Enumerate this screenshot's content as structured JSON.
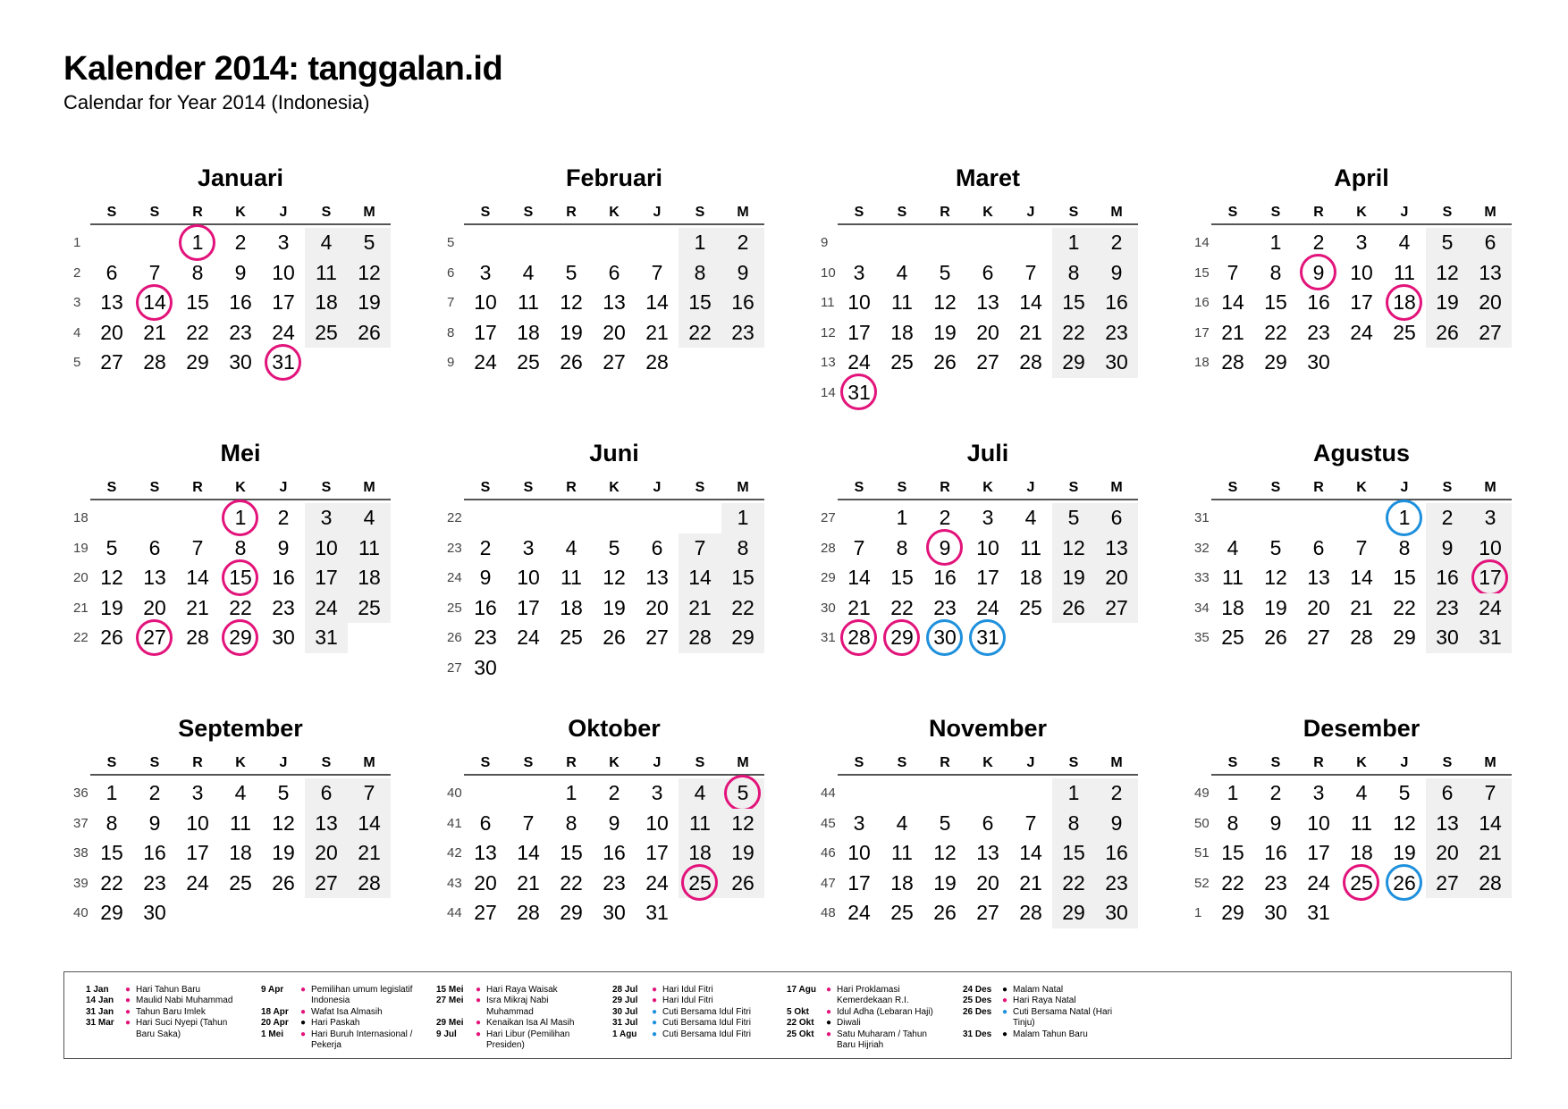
{
  "title": "Kalender 2014: tanggalan.id",
  "subtitle": "Calendar for Year 2014 (Indonesia)",
  "colors": {
    "holiday": "#e2137a",
    "cuti_bersama": "#1e90dc",
    "other": "#000000",
    "weekend_shade": "#f0f0f0"
  },
  "weekday_headers": [
    "S",
    "S",
    "R",
    "K",
    "J",
    "S",
    "M"
  ],
  "months": [
    {
      "name": "Januari",
      "rows": [
        {
          "w": "1",
          "d": [
            null,
            null,
            1,
            2,
            3,
            4,
            5
          ]
        },
        {
          "w": "2",
          "d": [
            6,
            7,
            8,
            9,
            10,
            11,
            12
          ]
        },
        {
          "w": "3",
          "d": [
            13,
            14,
            15,
            16,
            17,
            18,
            19
          ]
        },
        {
          "w": "4",
          "d": [
            20,
            21,
            22,
            23,
            24,
            25,
            26
          ]
        },
        {
          "w": "5",
          "d": [
            27,
            28,
            29,
            30,
            31,
            null,
            null
          ]
        }
      ],
      "marks": {
        "1": "holiday",
        "14": "holiday",
        "31": "holiday"
      }
    },
    {
      "name": "Februari",
      "rows": [
        {
          "w": "5",
          "d": [
            null,
            null,
            null,
            null,
            null,
            1,
            2
          ]
        },
        {
          "w": "6",
          "d": [
            3,
            4,
            5,
            6,
            7,
            8,
            9
          ]
        },
        {
          "w": "7",
          "d": [
            10,
            11,
            12,
            13,
            14,
            15,
            16
          ]
        },
        {
          "w": "8",
          "d": [
            17,
            18,
            19,
            20,
            21,
            22,
            23
          ]
        },
        {
          "w": "9",
          "d": [
            24,
            25,
            26,
            27,
            28,
            null,
            null
          ]
        }
      ],
      "marks": {}
    },
    {
      "name": "Maret",
      "rows": [
        {
          "w": "9",
          "d": [
            null,
            null,
            null,
            null,
            null,
            1,
            2
          ]
        },
        {
          "w": "10",
          "d": [
            3,
            4,
            5,
            6,
            7,
            8,
            9
          ]
        },
        {
          "w": "11",
          "d": [
            10,
            11,
            12,
            13,
            14,
            15,
            16
          ]
        },
        {
          "w": "12",
          "d": [
            17,
            18,
            19,
            20,
            21,
            22,
            23
          ]
        },
        {
          "w": "13",
          "d": [
            24,
            25,
            26,
            27,
            28,
            29,
            30
          ]
        },
        {
          "w": "14",
          "d": [
            31,
            null,
            null,
            null,
            null,
            null,
            null
          ]
        }
      ],
      "marks": {
        "31": "holiday"
      }
    },
    {
      "name": "April",
      "rows": [
        {
          "w": "14",
          "d": [
            null,
            1,
            2,
            3,
            4,
            5,
            6
          ]
        },
        {
          "w": "15",
          "d": [
            7,
            8,
            9,
            10,
            11,
            12,
            13
          ]
        },
        {
          "w": "16",
          "d": [
            14,
            15,
            16,
            17,
            18,
            19,
            20
          ]
        },
        {
          "w": "17",
          "d": [
            21,
            22,
            23,
            24,
            25,
            26,
            27
          ]
        },
        {
          "w": "18",
          "d": [
            28,
            29,
            30,
            null,
            null,
            null,
            null
          ]
        }
      ],
      "marks": {
        "9": "holiday",
        "18": "holiday"
      }
    },
    {
      "name": "Mei",
      "rows": [
        {
          "w": "18",
          "d": [
            null,
            null,
            null,
            1,
            2,
            3,
            4
          ]
        },
        {
          "w": "19",
          "d": [
            5,
            6,
            7,
            8,
            9,
            10,
            11
          ]
        },
        {
          "w": "20",
          "d": [
            12,
            13,
            14,
            15,
            16,
            17,
            18
          ]
        },
        {
          "w": "21",
          "d": [
            19,
            20,
            21,
            22,
            23,
            24,
            25
          ]
        },
        {
          "w": "22",
          "d": [
            26,
            27,
            28,
            29,
            30,
            31,
            null
          ]
        }
      ],
      "marks": {
        "1": "holiday",
        "15": "holiday",
        "27": "holiday",
        "29": "holiday"
      }
    },
    {
      "name": "Juni",
      "rows": [
        {
          "w": "22",
          "d": [
            null,
            null,
            null,
            null,
            null,
            null,
            1
          ]
        },
        {
          "w": "23",
          "d": [
            2,
            3,
            4,
            5,
            6,
            7,
            8
          ]
        },
        {
          "w": "24",
          "d": [
            9,
            10,
            11,
            12,
            13,
            14,
            15
          ]
        },
        {
          "w": "25",
          "d": [
            16,
            17,
            18,
            19,
            20,
            21,
            22
          ]
        },
        {
          "w": "26",
          "d": [
            23,
            24,
            25,
            26,
            27,
            28,
            29
          ]
        },
        {
          "w": "27",
          "d": [
            30,
            null,
            null,
            null,
            null,
            null,
            null
          ]
        }
      ],
      "marks": {}
    },
    {
      "name": "Juli",
      "rows": [
        {
          "w": "27",
          "d": [
            null,
            1,
            2,
            3,
            4,
            5,
            6
          ]
        },
        {
          "w": "28",
          "d": [
            7,
            8,
            9,
            10,
            11,
            12,
            13
          ]
        },
        {
          "w": "29",
          "d": [
            14,
            15,
            16,
            17,
            18,
            19,
            20
          ]
        },
        {
          "w": "30",
          "d": [
            21,
            22,
            23,
            24,
            25,
            26,
            27
          ]
        },
        {
          "w": "31",
          "d": [
            28,
            29,
            30,
            31,
            null,
            null,
            null
          ]
        }
      ],
      "marks": {
        "9": "holiday",
        "28": "holiday",
        "29": "holiday",
        "30": "cuti_bersama",
        "31": "cuti_bersama"
      }
    },
    {
      "name": "Agustus",
      "rows": [
        {
          "w": "31",
          "d": [
            null,
            null,
            null,
            null,
            1,
            2,
            3
          ]
        },
        {
          "w": "32",
          "d": [
            4,
            5,
            6,
            7,
            8,
            9,
            10
          ]
        },
        {
          "w": "33",
          "d": [
            11,
            12,
            13,
            14,
            15,
            16,
            17
          ]
        },
        {
          "w": "34",
          "d": [
            18,
            19,
            20,
            21,
            22,
            23,
            24
          ]
        },
        {
          "w": "35",
          "d": [
            25,
            26,
            27,
            28,
            29,
            30,
            31
          ]
        }
      ],
      "marks": {
        "1": "cuti_bersama",
        "17": "holiday"
      }
    },
    {
      "name": "September",
      "rows": [
        {
          "w": "36",
          "d": [
            1,
            2,
            3,
            4,
            5,
            6,
            7
          ]
        },
        {
          "w": "37",
          "d": [
            8,
            9,
            10,
            11,
            12,
            13,
            14
          ]
        },
        {
          "w": "38",
          "d": [
            15,
            16,
            17,
            18,
            19,
            20,
            21
          ]
        },
        {
          "w": "39",
          "d": [
            22,
            23,
            24,
            25,
            26,
            27,
            28
          ]
        },
        {
          "w": "40",
          "d": [
            29,
            30,
            null,
            null,
            null,
            null,
            null
          ]
        }
      ],
      "marks": {}
    },
    {
      "name": "Oktober",
      "rows": [
        {
          "w": "40",
          "d": [
            null,
            null,
            1,
            2,
            3,
            4,
            5
          ]
        },
        {
          "w": "41",
          "d": [
            6,
            7,
            8,
            9,
            10,
            11,
            12
          ]
        },
        {
          "w": "42",
          "d": [
            13,
            14,
            15,
            16,
            17,
            18,
            19
          ]
        },
        {
          "w": "43",
          "d": [
            20,
            21,
            22,
            23,
            24,
            25,
            26
          ]
        },
        {
          "w": "44",
          "d": [
            27,
            28,
            29,
            30,
            31,
            null,
            null
          ]
        }
      ],
      "marks": {
        "5": "holiday",
        "25": "holiday"
      }
    },
    {
      "name": "November",
      "rows": [
        {
          "w": "44",
          "d": [
            null,
            null,
            null,
            null,
            null,
            1,
            2
          ]
        },
        {
          "w": "45",
          "d": [
            3,
            4,
            5,
            6,
            7,
            8,
            9
          ]
        },
        {
          "w": "46",
          "d": [
            10,
            11,
            12,
            13,
            14,
            15,
            16
          ]
        },
        {
          "w": "47",
          "d": [
            17,
            18,
            19,
            20,
            21,
            22,
            23
          ]
        },
        {
          "w": "48",
          "d": [
            24,
            25,
            26,
            27,
            28,
            29,
            30
          ]
        }
      ],
      "marks": {}
    },
    {
      "name": "Desember",
      "rows": [
        {
          "w": "49",
          "d": [
            1,
            2,
            3,
            4,
            5,
            6,
            7
          ]
        },
        {
          "w": "50",
          "d": [
            8,
            9,
            10,
            11,
            12,
            13,
            14
          ]
        },
        {
          "w": "51",
          "d": [
            15,
            16,
            17,
            18,
            19,
            20,
            21
          ]
        },
        {
          "w": "52",
          "d": [
            22,
            23,
            24,
            25,
            26,
            27,
            28
          ]
        },
        {
          "w": "1",
          "d": [
            29,
            30,
            31,
            null,
            null,
            null,
            null
          ]
        }
      ],
      "marks": {
        "25": "holiday",
        "26": "cuti_bersama"
      }
    }
  ],
  "legend": [
    [
      {
        "date": "1 Jan",
        "type": "holiday",
        "text": "Hari Tahun Baru"
      },
      {
        "date": "14 Jan",
        "type": "holiday",
        "text": "Maulid Nabi Muhammad"
      },
      {
        "date": "31 Jan",
        "type": "holiday",
        "text": "Tahun Baru Imlek"
      },
      {
        "date": "31 Mar",
        "type": "holiday",
        "text": "Hari Suci Nyepi (Tahun Baru Saka)"
      }
    ],
    [
      {
        "date": "9 Apr",
        "type": "holiday",
        "text": "Pemilihan umum legislatif Indonesia"
      },
      {
        "date": "18 Apr",
        "type": "holiday",
        "text": "Wafat Isa Almasih"
      },
      {
        "date": "20 Apr",
        "type": "other",
        "text": "Hari Paskah"
      },
      {
        "date": "1 Mei",
        "type": "holiday",
        "text": "Hari Buruh Internasional / Pekerja"
      }
    ],
    [
      {
        "date": "15 Mei",
        "type": "holiday",
        "text": "Hari Raya Waisak"
      },
      {
        "date": "27 Mei",
        "type": "holiday",
        "text": "Isra Mikraj Nabi Muhammad"
      },
      {
        "date": "29 Mei",
        "type": "holiday",
        "text": "Kenaikan Isa Al Masih"
      },
      {
        "date": "9 Jul",
        "type": "holiday",
        "text": "Hari Libur (Pemilihan Presiden)"
      }
    ],
    [
      {
        "date": "28 Jul",
        "type": "holiday",
        "text": "Hari Idul Fitri"
      },
      {
        "date": "29 Jul",
        "type": "holiday",
        "text": "Hari Idul Fitri"
      },
      {
        "date": "30 Jul",
        "type": "cuti_bersama",
        "text": "Cuti Bersama Idul Fitri"
      },
      {
        "date": "31 Jul",
        "type": "cuti_bersama",
        "text": "Cuti Bersama Idul Fitri"
      },
      {
        "date": "1 Agu",
        "type": "cuti_bersama",
        "text": "Cuti Bersama Idul Fitri"
      }
    ],
    [
      {
        "date": "17 Agu",
        "type": "holiday",
        "text": "Hari Proklamasi Kemerdekaan R.I."
      },
      {
        "date": "5 Okt",
        "type": "holiday",
        "text": "Idul Adha (Lebaran Haji)"
      },
      {
        "date": "22 Okt",
        "type": "other",
        "text": "Diwali"
      },
      {
        "date": "25 Okt",
        "type": "holiday",
        "text": "Satu Muharam / Tahun Baru Hijriah"
      }
    ],
    [
      {
        "date": "24 Des",
        "type": "other",
        "text": "Malam Natal"
      },
      {
        "date": "25 Des",
        "type": "holiday",
        "text": "Hari Raya Natal"
      },
      {
        "date": "26 Des",
        "type": "cuti_bersama",
        "text": "Cuti Bersama Natal (Hari Tinju)"
      },
      {
        "date": "31 Des",
        "type": "other",
        "text": "Malam Tahun Baru"
      }
    ]
  ]
}
